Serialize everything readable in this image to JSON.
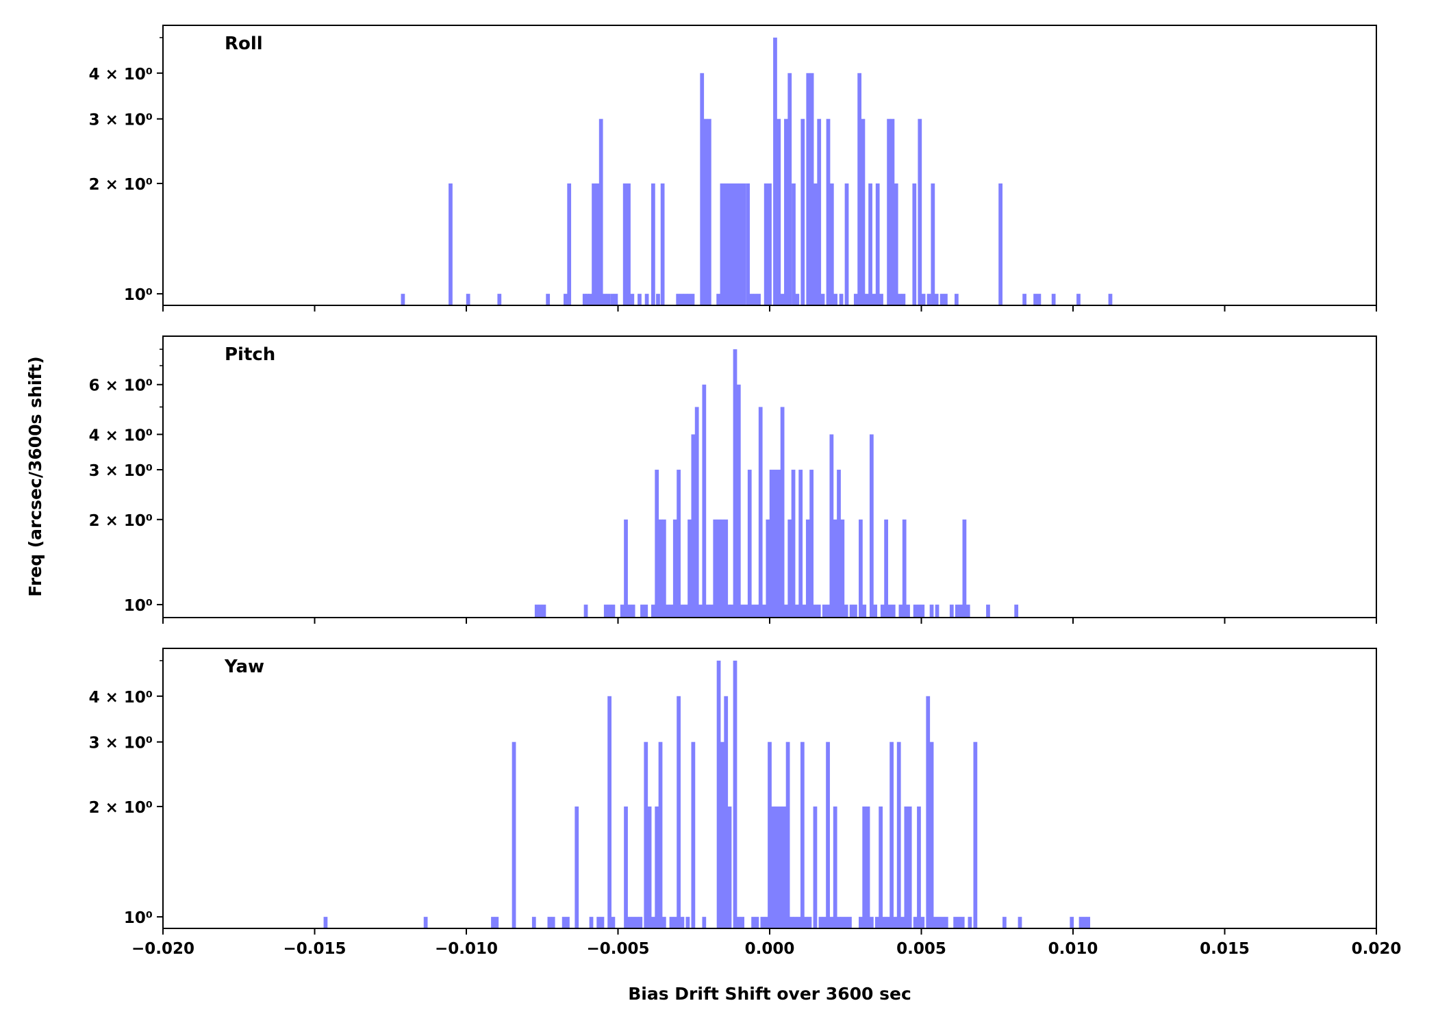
{
  "chart_data": {
    "type": "bar",
    "subtype": "histogram",
    "xlabel": "Bias Drift Shift over 3600 sec",
    "ylabel": "Freq (arcsec/3600s shift)",
    "xlim": [
      -0.02,
      0.02
    ],
    "xticks": [
      -0.02,
      -0.015,
      -0.01,
      -0.005,
      0.0,
      0.005,
      0.01,
      0.015,
      0.02
    ],
    "xtick_labels": [
      "−0.020",
      "−0.015",
      "−0.010",
      "−0.005",
      "0.000",
      "0.005",
      "0.010",
      "0.015",
      "0.020"
    ],
    "bin_width": 0.00013,
    "bar_color": "#8080ff",
    "yscale": "log",
    "panels": [
      {
        "title": "Roll",
        "ylim": [
          0.93,
          5.4
        ],
        "yticks": [
          1,
          2,
          3,
          4
        ],
        "ytick_labels": [
          "10⁰",
          "2 × 10⁰",
          "3 × 10⁰",
          "4 × 10⁰"
        ],
        "minor_yticks": [
          5
        ],
        "bins": [
          [
            -0.01209,
            1
          ],
          [
            -0.01052,
            2
          ],
          [
            -0.00994,
            1
          ],
          [
            -0.00891,
            1
          ],
          [
            -0.00731,
            1
          ],
          [
            -0.00673,
            1
          ],
          [
            -0.00661,
            2
          ],
          [
            -0.0061,
            1
          ],
          [
            -0.00601,
            1
          ],
          [
            -0.00592,
            1
          ],
          [
            -0.0058,
            2
          ],
          [
            -0.00568,
            2
          ],
          [
            -0.00556,
            3
          ],
          [
            -0.00544,
            1
          ],
          [
            -0.00532,
            1
          ],
          [
            -0.00519,
            1
          ],
          [
            -0.00507,
            1
          ],
          [
            -0.00477,
            2
          ],
          [
            -0.00465,
            2
          ],
          [
            -0.00453,
            1
          ],
          [
            -0.00429,
            1
          ],
          [
            -0.00405,
            1
          ],
          [
            -0.00384,
            2
          ],
          [
            -0.00368,
            1
          ],
          [
            -0.00353,
            2
          ],
          [
            -0.00302,
            1
          ],
          [
            -0.0029,
            1
          ],
          [
            -0.00278,
            1
          ],
          [
            -0.00266,
            1
          ],
          [
            -0.00254,
            1
          ],
          [
            -0.00223,
            4
          ],
          [
            -0.00211,
            3
          ],
          [
            -0.00199,
            3
          ],
          [
            -0.00169,
            1
          ],
          [
            -0.00157,
            2
          ],
          [
            -0.00145,
            2
          ],
          [
            -0.00133,
            2
          ],
          [
            -0.00121,
            2
          ],
          [
            -0.00109,
            2
          ],
          [
            -0.00097,
            2
          ],
          [
            -0.00085,
            2
          ],
          [
            -0.00072,
            2
          ],
          [
            -0.0006,
            1
          ],
          [
            -0.00048,
            1
          ],
          [
            -0.00036,
            1
          ],
          [
            -0.00012,
            2
          ],
          [
            0.0,
            2
          ],
          [
            0.00018,
            5
          ],
          [
            0.0003,
            3
          ],
          [
            0.00042,
            1
          ],
          [
            0.00054,
            3
          ],
          [
            0.00066,
            4
          ],
          [
            0.00079,
            2
          ],
          [
            0.00091,
            1
          ],
          [
            0.00109,
            3
          ],
          [
            0.00127,
            4
          ],
          [
            0.00139,
            4
          ],
          [
            0.00151,
            2
          ],
          [
            0.00163,
            3
          ],
          [
            0.00175,
            1
          ],
          [
            0.00193,
            3
          ],
          [
            0.00205,
            2
          ],
          [
            0.00217,
            1
          ],
          [
            0.00236,
            1
          ],
          [
            0.00254,
            2
          ],
          [
            0.00284,
            1
          ],
          [
            0.00296,
            4
          ],
          [
            0.00308,
            3
          ],
          [
            0.0032,
            1
          ],
          [
            0.00332,
            2
          ],
          [
            0.00344,
            1
          ],
          [
            0.00356,
            2
          ],
          [
            0.00368,
            1
          ],
          [
            0.00393,
            3
          ],
          [
            0.00405,
            3
          ],
          [
            0.00417,
            2
          ],
          [
            0.00429,
            1
          ],
          [
            0.00441,
            1
          ],
          [
            0.00477,
            2
          ],
          [
            0.00495,
            3
          ],
          [
            0.00507,
            1
          ],
          [
            0.00525,
            1
          ],
          [
            0.00538,
            2
          ],
          [
            0.0055,
            1
          ],
          [
            0.00568,
            1
          ],
          [
            0.0058,
            1
          ],
          [
            0.00616,
            1
          ],
          [
            0.00761,
            2
          ],
          [
            0.0084,
            1
          ],
          [
            0.00876,
            1
          ],
          [
            0.00888,
            1
          ],
          [
            0.00936,
            1
          ],
          [
            0.01018,
            1
          ],
          [
            0.01123,
            1
          ]
        ]
      },
      {
        "title": "Pitch",
        "ylim": [
          0.9,
          8.9
        ],
        "yticks": [
          1,
          2,
          3,
          4,
          6
        ],
        "ytick_labels": [
          "10⁰",
          "2 × 10⁰",
          "3 × 10⁰",
          "4 × 10⁰",
          "6 × 10⁰"
        ],
        "minor_yticks": [
          5,
          7,
          8
        ],
        "bins": [
          [
            -0.00768,
            1
          ],
          [
            -0.00756,
            1
          ],
          [
            -0.00744,
            1
          ],
          [
            -0.00606,
            1
          ],
          [
            -0.0054,
            1
          ],
          [
            -0.00528,
            1
          ],
          [
            -0.00516,
            1
          ],
          [
            -0.00486,
            1
          ],
          [
            -0.00474,
            2
          ],
          [
            -0.00462,
            1
          ],
          [
            -0.0045,
            1
          ],
          [
            -0.0042,
            1
          ],
          [
            -0.00408,
            1
          ],
          [
            -0.00384,
            1
          ],
          [
            -0.00372,
            3
          ],
          [
            -0.0036,
            2
          ],
          [
            -0.00348,
            2
          ],
          [
            -0.00336,
            1
          ],
          [
            -0.00324,
            1
          ],
          [
            -0.00312,
            2
          ],
          [
            -0.003,
            3
          ],
          [
            -0.00288,
            1
          ],
          [
            -0.00276,
            1
          ],
          [
            -0.00264,
            2
          ],
          [
            -0.00252,
            4
          ],
          [
            -0.0024,
            5
          ],
          [
            -0.00228,
            1
          ],
          [
            -0.00216,
            6
          ],
          [
            -0.00204,
            1
          ],
          [
            -0.00192,
            1
          ],
          [
            -0.0018,
            2
          ],
          [
            -0.00168,
            2
          ],
          [
            -0.00156,
            2
          ],
          [
            -0.00144,
            2
          ],
          [
            -0.00132,
            1
          ],
          [
            -0.00126,
            1
          ],
          [
            -0.00114,
            8
          ],
          [
            -0.00102,
            6
          ],
          [
            -0.0009,
            1
          ],
          [
            -0.00078,
            1
          ],
          [
            -0.00066,
            3
          ],
          [
            -0.00054,
            1
          ],
          [
            -0.00042,
            1
          ],
          [
            -0.0003,
            5
          ],
          [
            -0.00018,
            1
          ],
          [
            -6e-05,
            2
          ],
          [
            6e-05,
            3
          ],
          [
            0.00018,
            3
          ],
          [
            0.0003,
            3
          ],
          [
            0.00042,
            5
          ],
          [
            0.00054,
            1
          ],
          [
            0.00066,
            2
          ],
          [
            0.00078,
            3
          ],
          [
            0.0009,
            1
          ],
          [
            0.00102,
            3
          ],
          [
            0.00114,
            1
          ],
          [
            0.00126,
            2
          ],
          [
            0.00138,
            3
          ],
          [
            0.0015,
            1
          ],
          [
            0.00162,
            1
          ],
          [
            0.0018,
            1
          ],
          [
            0.00192,
            1
          ],
          [
            0.00204,
            4
          ],
          [
            0.00216,
            2
          ],
          [
            0.00228,
            3
          ],
          [
            0.0024,
            2
          ],
          [
            0.00252,
            1
          ],
          [
            0.0027,
            1
          ],
          [
            0.00282,
            1
          ],
          [
            0.003,
            2
          ],
          [
            0.00312,
            1
          ],
          [
            0.00336,
            4
          ],
          [
            0.00348,
            1
          ],
          [
            0.00372,
            1
          ],
          [
            0.00384,
            2
          ],
          [
            0.00396,
            1
          ],
          [
            0.00408,
            1
          ],
          [
            0.00432,
            1
          ],
          [
            0.00444,
            2
          ],
          [
            0.00456,
            1
          ],
          [
            0.0048,
            1
          ],
          [
            0.00492,
            1
          ],
          [
            0.00504,
            1
          ],
          [
            0.00534,
            1
          ],
          [
            0.00552,
            1
          ],
          [
            0.006,
            1
          ],
          [
            0.00618,
            1
          ],
          [
            0.0063,
            1
          ],
          [
            0.00642,
            2
          ],
          [
            0.00654,
            1
          ],
          [
            0.0072,
            1
          ],
          [
            0.00813,
            1
          ]
        ]
      },
      {
        "title": "Yaw",
        "ylim": [
          0.93,
          5.4
        ],
        "yticks": [
          1,
          2,
          3,
          4
        ],
        "ytick_labels": [
          "10⁰",
          "2 × 10⁰",
          "3 × 10⁰",
          "4 × 10⁰"
        ],
        "minor_yticks": [
          5
        ],
        "bins": [
          [
            -0.01464,
            1
          ],
          [
            -0.01134,
            1
          ],
          [
            -0.00912,
            1
          ],
          [
            -0.009,
            1
          ],
          [
            -0.00843,
            3
          ],
          [
            -0.00777,
            1
          ],
          [
            -0.00726,
            1
          ],
          [
            -0.00714,
            1
          ],
          [
            -0.00678,
            1
          ],
          [
            -0.00666,
            1
          ],
          [
            -0.00636,
            2
          ],
          [
            -0.00588,
            1
          ],
          [
            -0.00564,
            1
          ],
          [
            -0.00552,
            1
          ],
          [
            -0.00528,
            4
          ],
          [
            -0.00516,
            1
          ],
          [
            -0.00474,
            2
          ],
          [
            -0.00462,
            1
          ],
          [
            -0.0045,
            1
          ],
          [
            -0.00438,
            1
          ],
          [
            -0.00426,
            1
          ],
          [
            -0.00408,
            3
          ],
          [
            -0.00396,
            2
          ],
          [
            -0.00384,
            1
          ],
          [
            -0.00372,
            2
          ],
          [
            -0.0036,
            3
          ],
          [
            -0.00348,
            1
          ],
          [
            -0.00324,
            1
          ],
          [
            -0.00312,
            1
          ],
          [
            -0.003,
            4
          ],
          [
            -0.00288,
            1
          ],
          [
            -0.0027,
            1
          ],
          [
            -0.00252,
            3
          ],
          [
            -0.00216,
            1
          ],
          [
            -0.00168,
            5
          ],
          [
            -0.00156,
            3
          ],
          [
            -0.00144,
            4
          ],
          [
            -0.00132,
            2
          ],
          [
            -0.00114,
            5
          ],
          [
            -0.00102,
            1
          ],
          [
            -0.0009,
            1
          ],
          [
            -0.00054,
            1
          ],
          [
            -0.00042,
            1
          ],
          [
            -0.00024,
            1
          ],
          [
            -0.00012,
            1
          ],
          [
            0.0,
            3
          ],
          [
            0.00012,
            2
          ],
          [
            0.00024,
            2
          ],
          [
            0.00036,
            2
          ],
          [
            0.00048,
            2
          ],
          [
            0.0006,
            3
          ],
          [
            0.00072,
            1
          ],
          [
            0.00084,
            1
          ],
          [
            0.00096,
            1
          ],
          [
            0.00108,
            3
          ],
          [
            0.0012,
            1
          ],
          [
            0.00132,
            1
          ],
          [
            0.0015,
            2
          ],
          [
            0.00168,
            1
          ],
          [
            0.0018,
            1
          ],
          [
            0.00192,
            3
          ],
          [
            0.00204,
            1
          ],
          [
            0.00216,
            2
          ],
          [
            0.00228,
            1
          ],
          [
            0.0024,
            1
          ],
          [
            0.00252,
            1
          ],
          [
            0.00264,
            1
          ],
          [
            0.003,
            1
          ],
          [
            0.00312,
            2
          ],
          [
            0.00324,
            2
          ],
          [
            0.00336,
            1
          ],
          [
            0.00354,
            1
          ],
          [
            0.00366,
            2
          ],
          [
            0.00378,
            1
          ],
          [
            0.0039,
            1
          ],
          [
            0.00402,
            3
          ],
          [
            0.00414,
            1
          ],
          [
            0.00426,
            3
          ],
          [
            0.00438,
            1
          ],
          [
            0.0045,
            2
          ],
          [
            0.00462,
            2
          ],
          [
            0.0048,
            1
          ],
          [
            0.00492,
            2
          ],
          [
            0.00504,
            1
          ],
          [
            0.00522,
            4
          ],
          [
            0.00534,
            3
          ],
          [
            0.00546,
            1
          ],
          [
            0.00558,
            1
          ],
          [
            0.0057,
            1
          ],
          [
            0.00582,
            1
          ],
          [
            0.00612,
            1
          ],
          [
            0.00624,
            1
          ],
          [
            0.00636,
            1
          ],
          [
            0.0066,
            1
          ],
          [
            0.00678,
            3
          ],
          [
            0.00774,
            1
          ],
          [
            0.00825,
            1
          ],
          [
            0.00996,
            1
          ],
          [
            0.01026,
            1
          ],
          [
            0.01038,
            1
          ],
          [
            0.0105,
            1
          ]
        ]
      }
    ]
  }
}
